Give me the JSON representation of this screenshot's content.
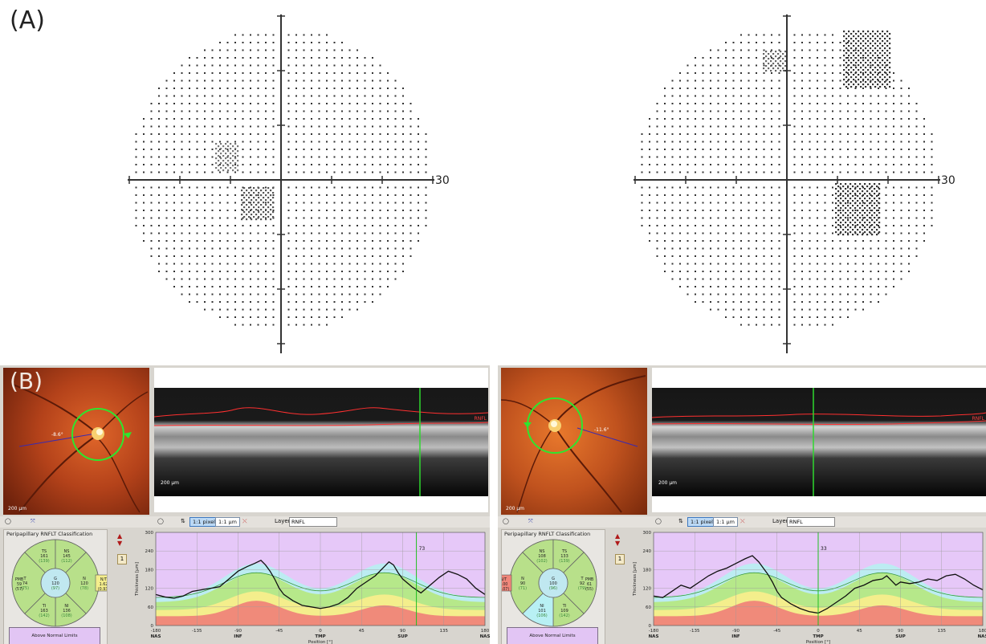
{
  "panel_a": {
    "label": "(A)",
    "left_field": {
      "axis_label": "30"
    },
    "right_field": {
      "axis_label": "30"
    }
  },
  "panel_b": {
    "label": "(B)",
    "left": {
      "fundus_angle": "-8.6°",
      "fundus_scale": "200 µm",
      "bscan_scale": "200 µm",
      "bscan_marker": "RNFL",
      "toolbar": {
        "pixel_btn": "1:1 pixel",
        "um_btn": "1:1 µm",
        "layer_label": "Layer:",
        "layer_value": "RNFL"
      },
      "classification": {
        "title": "Peripapillary RNFLT Classification",
        "sectors": {
          "TS": {
            "name": "TS",
            "value": "161",
            "ref": "(139)"
          },
          "NS": {
            "name": "NS",
            "value": "145",
            "ref": "(112)"
          },
          "T": {
            "name": "T",
            "value": "74",
            "ref": "(75)"
          },
          "G": {
            "name": "G",
            "value": "120",
            "ref": "(97)"
          },
          "N": {
            "name": "N",
            "value": "120",
            "ref": "(78)"
          },
          "TI": {
            "name": "TI",
            "value": "163",
            "ref": "(142)"
          },
          "NI": {
            "name": "NI",
            "value": "136",
            "ref": "(108)"
          },
          "PMB": {
            "name": "PMB",
            "value": "59",
            "ref": "(57)"
          },
          "NT": {
            "name": "N/T",
            "value": "1.62",
            "ref": "(0.93)"
          }
        },
        "legend": "Above Normal Limits"
      },
      "page_num": "1",
      "chart_marker": "73"
    },
    "right": {
      "fundus_angle": "-11.6°",
      "fundus_scale": "200 µm",
      "bscan_scale": "200 µm",
      "bscan_marker": "RNFL",
      "toolbar": {
        "pixel_btn": "1:1 pixel",
        "um_btn": "1:1 µm",
        "layer_label": "Layer:",
        "layer_value": "RNFL"
      },
      "classification": {
        "title": "Peripapillary RNFLT Classification",
        "sectors": {
          "NS": {
            "name": "NS",
            "value": "108",
            "ref": "(102)"
          },
          "TS": {
            "name": "TS",
            "value": "133",
            "ref": "(139)"
          },
          "N": {
            "name": "N",
            "value": "90",
            "ref": "(71)"
          },
          "G": {
            "name": "G",
            "value": "100",
            "ref": "(96)"
          },
          "T": {
            "name": "T",
            "value": "92",
            "ref": "(79)"
          },
          "NI": {
            "name": "NI",
            "value": "101",
            "ref": "(106)"
          },
          "TI": {
            "name": "TI",
            "value": "109",
            "ref": "(142)"
          },
          "PMB": {
            "name": "PMB",
            "value": "61",
            "ref": "(55)"
          },
          "NT": {
            "name": "N/T",
            "value": "1.00",
            "ref": "(1.07)"
          }
        },
        "legend": "Above Normal Limits"
      },
      "page_num": "1",
      "chart_marker": "33"
    }
  },
  "chart_data": [
    {
      "type": "line",
      "title": "",
      "ylabel": "Thickness [µm]",
      "xlabel": "Position [°]",
      "ylim": [
        0,
        300
      ],
      "xlim": [
        -180,
        180
      ],
      "y_ticks": [
        "300",
        "240",
        "180",
        "120",
        "60",
        "0"
      ],
      "x_ticks": [
        "-180",
        "-135",
        "-90",
        "-45",
        "0",
        "45",
        "90",
        "135",
        "180"
      ],
      "x_sector_labels": [
        "NAS",
        "INF",
        "TMP",
        "SUP",
        "NAS"
      ],
      "series": [
        {
          "x": [
            -180,
            -170,
            -160,
            -150,
            -140,
            -130,
            -120,
            -110,
            -100,
            -90,
            -80,
            -72,
            -65,
            -60,
            -55,
            -50,
            -45,
            -40,
            -30,
            -20,
            -10,
            0,
            10,
            20,
            30,
            40,
            50,
            60,
            70,
            75,
            80,
            85,
            90,
            100,
            110,
            120,
            130,
            140,
            150,
            160,
            170,
            180
          ],
          "values": [
            100,
            92,
            88,
            95,
            110,
            115,
            120,
            125,
            150,
            175,
            190,
            200,
            210,
            195,
            175,
            150,
            120,
            100,
            80,
            65,
            60,
            55,
            60,
            70,
            90,
            120,
            140,
            160,
            190,
            205,
            195,
            170,
            150,
            125,
            105,
            130,
            155,
            175,
            165,
            150,
            120,
            100
          ]
        }
      ]
    },
    {
      "type": "line",
      "title": "",
      "ylabel": "Thickness [µm]",
      "xlabel": "Position [°]",
      "ylim": [
        0,
        300
      ],
      "xlim": [
        -180,
        180
      ],
      "y_ticks": [
        "300",
        "240",
        "180",
        "120",
        "60",
        "0"
      ],
      "x_ticks": [
        "-180",
        "-135",
        "-90",
        "-45",
        "0",
        "45",
        "90",
        "135",
        "180"
      ],
      "x_sector_labels": [
        "NAS",
        "INF",
        "TMP",
        "SUP",
        "NAS"
      ],
      "series": [
        {
          "x": [
            -180,
            -170,
            -160,
            -150,
            -140,
            -130,
            -120,
            -110,
            -100,
            -90,
            -80,
            -72,
            -65,
            -60,
            -55,
            -50,
            -45,
            -40,
            -30,
            -20,
            -10,
            0,
            10,
            20,
            30,
            40,
            50,
            60,
            70,
            75,
            80,
            85,
            90,
            100,
            110,
            120,
            130,
            140,
            150,
            160,
            170,
            180
          ],
          "values": [
            95,
            90,
            110,
            130,
            120,
            140,
            160,
            175,
            185,
            200,
            215,
            225,
            205,
            185,
            165,
            140,
            110,
            90,
            70,
            55,
            45,
            40,
            55,
            75,
            95,
            120,
            130,
            145,
            150,
            160,
            145,
            130,
            140,
            135,
            140,
            150,
            145,
            160,
            165,
            150,
            130,
            115
          ]
        }
      ]
    }
  ]
}
